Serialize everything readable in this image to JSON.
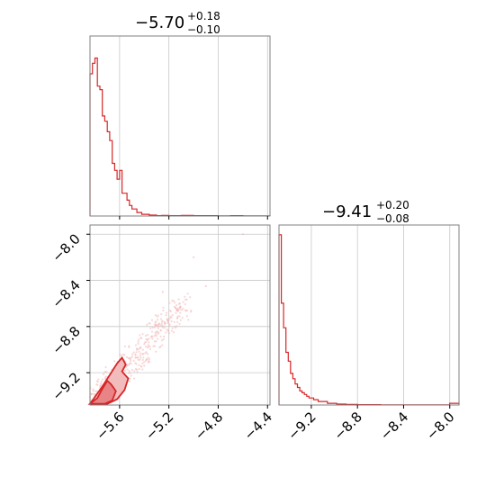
{
  "colors": {
    "series": "#d62728",
    "fill_outer": "#f3bcbc",
    "fill_inner": "#e88486",
    "scatter": "#f2b8b8"
  },
  "chart_data": {
    "type": "corner",
    "parameters": [
      {
        "id": "p1",
        "median": -5.7,
        "plus": 0.18,
        "minus": 0.1,
        "title": {
          "value": "−5.70",
          "plus": "+0.18",
          "minus": "−0.10"
        },
        "range": [
          -5.84,
          -4.38
        ],
        "ticks": [
          -5.6,
          -5.2,
          -4.8,
          -4.4
        ],
        "tick_labels": [
          "−5.6",
          "−5.2",
          "−4.8",
          "−4.4"
        ]
      },
      {
        "id": "p2",
        "median": -9.41,
        "plus": 0.2,
        "minus": 0.08,
        "title": {
          "value": "−9.41",
          "plus": "+0.20",
          "minus": "−0.08"
        },
        "range": [
          -9.48,
          -7.92
        ],
        "ticks": [
          -9.2,
          -8.8,
          -8.4,
          -8.0
        ],
        "tick_labels": [
          "−9.2",
          "−8.8",
          "−8.4",
          "−8.0"
        ]
      }
    ],
    "hist_p1": {
      "bins": [
        -5.84,
        -5.82,
        -5.8,
        -5.78,
        -5.76,
        -5.74,
        -5.72,
        -5.7,
        -5.68,
        -5.66,
        -5.64,
        -5.62,
        -5.6,
        -5.58,
        -5.56,
        -5.54,
        -5.52,
        -5.5,
        -5.48,
        -5.46,
        -5.44,
        -5.42,
        -5.4,
        -5.38,
        -5.36,
        -5.34,
        -5.32,
        -5.3,
        -5.26,
        -5.2,
        -5.1,
        -5.0,
        -4.9,
        -4.8,
        -4.7,
        -4.6,
        -4.5,
        -4.38
      ],
      "counts": [
        0.81,
        0.87,
        0.9,
        0.74,
        0.72,
        0.57,
        0.54,
        0.48,
        0.43,
        0.3,
        0.26,
        0.21,
        0.26,
        0.13,
        0.13,
        0.09,
        0.06,
        0.04,
        0.04,
        0.02,
        0.02,
        0.01,
        0.01,
        0.01,
        0.005,
        0.005,
        0.005,
        0.002,
        0.003,
        0.002,
        0.003,
        0.002,
        0.002,
        0.001,
        0.002,
        0.001,
        0.001
      ]
    },
    "hist_p2": {
      "bins": [
        -9.48,
        -9.46,
        -9.44,
        -9.42,
        -9.4,
        -9.38,
        -9.36,
        -9.34,
        -9.32,
        -9.3,
        -9.28,
        -9.26,
        -9.24,
        -9.22,
        -9.2,
        -9.18,
        -9.16,
        -9.14,
        -9.1,
        -9.06,
        -9.02,
        -8.98,
        -8.94,
        -8.9,
        -8.8,
        -8.7,
        -8.6,
        -8.4,
        -8.2,
        -8.0,
        -7.92
      ],
      "counts": [
        0.97,
        0.58,
        0.44,
        0.3,
        0.25,
        0.18,
        0.15,
        0.12,
        0.1,
        0.08,
        0.07,
        0.06,
        0.05,
        0.04,
        0.04,
        0.03,
        0.03,
        0.02,
        0.02,
        0.01,
        0.01,
        0.005,
        0.005,
        0.003,
        0.002,
        0.002,
        0.001,
        0.001,
        0.001,
        0.01
      ]
    },
    "contours": {
      "outer": [
        [
          -5.84,
          -9.47
        ],
        [
          -5.8,
          -9.41
        ],
        [
          -5.74,
          -9.32
        ],
        [
          -5.68,
          -9.22
        ],
        [
          -5.62,
          -9.12
        ],
        [
          -5.58,
          -9.07
        ],
        [
          -5.55,
          -9.13
        ],
        [
          -5.58,
          -9.19
        ],
        [
          -5.53,
          -9.25
        ],
        [
          -5.56,
          -9.35
        ],
        [
          -5.62,
          -9.43
        ],
        [
          -5.7,
          -9.47
        ],
        [
          -5.84,
          -9.47
        ]
      ],
      "inner": [
        [
          -5.84,
          -9.47
        ],
        [
          -5.78,
          -9.42
        ],
        [
          -5.74,
          -9.34
        ],
        [
          -5.7,
          -9.27
        ],
        [
          -5.67,
          -9.3
        ],
        [
          -5.63,
          -9.36
        ],
        [
          -5.66,
          -9.44
        ],
        [
          -5.72,
          -9.47
        ],
        [
          -5.84,
          -9.47
        ]
      ]
    },
    "scatter_region": {
      "center": [
        -5.45,
        -9.05
      ],
      "extent": [
        -5.84,
        -4.7,
        -9.48,
        -8.4
      ]
    }
  }
}
